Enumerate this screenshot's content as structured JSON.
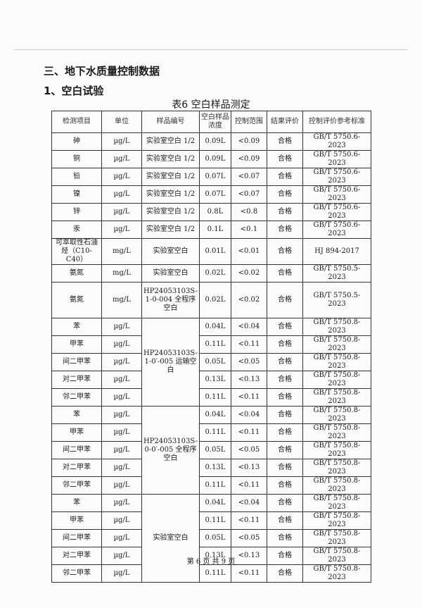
{
  "section_title": "三、地下水质量控制数据",
  "subsection_title": "1、空白试验",
  "table_caption": "表6   空白样品测定",
  "table": {
    "headers": [
      "检测项目",
      "单位",
      "样品编号",
      "空白样品浓度",
      "控制范围",
      "结果评价",
      "控制评价参考标准"
    ],
    "rows": [
      {
        "item": "砷",
        "unit": "µg/L",
        "sample": "实验室空白 1/2",
        "conc": "0.09L",
        "range": "<0.09",
        "result": "合格",
        "standard": "GB/T 5750.6-2023"
      },
      {
        "item": "铜",
        "unit": "µg/L",
        "sample": "实验室空白 1/2",
        "conc": "0.09L",
        "range": "<0.09",
        "result": "合格",
        "standard": "GB/T 5750.6-2023"
      },
      {
        "item": "铅",
        "unit": "µg/L",
        "sample": "实验室空白 1/2",
        "conc": "0.07L",
        "range": "<0.07",
        "result": "合格",
        "standard": "GB/T 5750.6-2023"
      },
      {
        "item": "镍",
        "unit": "µg/L",
        "sample": "实验室空白 1/2",
        "conc": "0.07L",
        "range": "<0.07",
        "result": "合格",
        "standard": "GB/T 5750.6-2023"
      },
      {
        "item": "锌",
        "unit": "µg/L",
        "sample": "实验室空白 1/2",
        "conc": "0.8L",
        "range": "<0.8",
        "result": "合格",
        "standard": "GB/T 5750.6-2023"
      },
      {
        "item": "汞",
        "unit": "µg/L",
        "sample": "实验室空白 1/2",
        "conc": "0.1L",
        "range": "<0.1",
        "result": "合格",
        "standard": "GB/T 5750.6-2023"
      },
      {
        "item": "可萃取性石油烃（C10-C40）",
        "unit": "mg/L",
        "sample": "实验室空白",
        "conc": "0.01L",
        "range": "<0.01",
        "result": "合格",
        "standard": "HJ 894-2017"
      },
      {
        "item": "氨氮",
        "unit": "mg/L",
        "sample": "实验室空白",
        "conc": "0.02L",
        "range": "<0.02",
        "result": "合格",
        "standard": "GB/T 5750.5-2023"
      },
      {
        "item": "氨氮",
        "unit": "mg/L",
        "sample": "HP24053103S-1-0-004 全程序空白",
        "conc": "0.02L",
        "range": "<0.02",
        "result": "合格",
        "standard": "GB/T 5750.5-2023"
      },
      {
        "item": "苯",
        "unit": "µg/L",
        "sample": "HP24053103S-1-0′-005 运输空白",
        "span": 5,
        "conc": "0.04L",
        "range": "<0.04",
        "result": "合格",
        "standard": "GB/T 5750.8-2023"
      },
      {
        "item": "甲苯",
        "unit": "µg/L",
        "conc": "0.11L",
        "range": "<0.11",
        "result": "合格",
        "standard": "GB/T 5750.8-2023"
      },
      {
        "item": "间二甲苯",
        "unit": "µg/L",
        "conc": "0.05L",
        "range": "<0.05",
        "result": "合格",
        "standard": "GB/T 5750.8-2023"
      },
      {
        "item": "对二甲苯",
        "unit": "µg/L",
        "conc": "0.13L",
        "range": "<0.13",
        "result": "合格",
        "standard": "GB/T 5750.8-2023"
      },
      {
        "item": "邻二甲苯",
        "unit": "µg/L",
        "conc": "0.11L",
        "range": "<0.11",
        "result": "合格",
        "standard": "GB/T 5750.8-2023"
      },
      {
        "item": "苯",
        "unit": "µg/L",
        "sample": "HP24053103S-0-0′-005 全程序空白",
        "span": 5,
        "conc": "0.04L",
        "range": "<0.04",
        "result": "合格",
        "standard": "GB/T 5750.8-2023"
      },
      {
        "item": "甲苯",
        "unit": "µg/L",
        "conc": "0.11L",
        "range": "<0.11",
        "result": "合格",
        "standard": "GB/T 5750.8-2023"
      },
      {
        "item": "间二甲苯",
        "unit": "µg/L",
        "conc": "0.05L",
        "range": "<0.05",
        "result": "合格",
        "standard": "GB/T 5750.8-2023"
      },
      {
        "item": "对二甲苯",
        "unit": "µg/L",
        "conc": "0.13L",
        "range": "<0.13",
        "result": "合格",
        "standard": "GB/T 5750.8-2023"
      },
      {
        "item": "邻二甲苯",
        "unit": "µg/L",
        "conc": "0.11L",
        "range": "<0.11",
        "result": "合格",
        "standard": "GB/T 5750.8-2023"
      },
      {
        "item": "苯",
        "unit": "µg/L",
        "sample": "实验室空白",
        "span": 5,
        "conc": "0.04L",
        "range": "<0.04",
        "result": "合格",
        "standard": "GB/T 5750.8-2023"
      },
      {
        "item": "甲苯",
        "unit": "µg/L",
        "conc": "0.11L",
        "range": "<0.11",
        "result": "合格",
        "standard": "GB/T 5750.8-2023"
      },
      {
        "item": "间二甲苯",
        "unit": "µg/L",
        "conc": "0.05L",
        "range": "<0.05",
        "result": "合格",
        "standard": "GB/T 5750.8-2023"
      },
      {
        "item": "对二甲苯",
        "unit": "µg/L",
        "conc": "0.13L",
        "range": "<0.13",
        "result": "合格",
        "standard": "GB/T 5750.8-2023"
      },
      {
        "item": "邻二甲苯",
        "unit": "µg/L",
        "conc": "0.11L",
        "range": "<0.11",
        "result": "合格",
        "standard": "GB/T 5750.8-2023"
      }
    ]
  },
  "footer": "第 6 页  共 9 页"
}
